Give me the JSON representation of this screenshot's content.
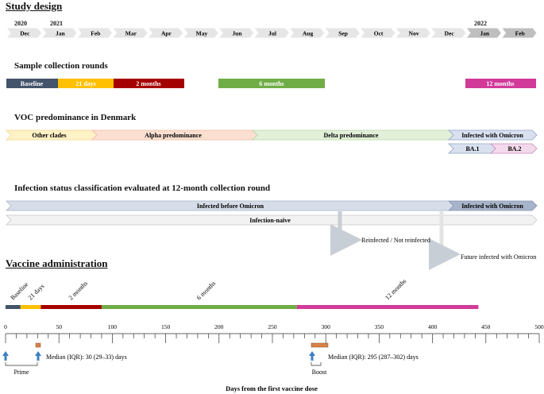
{
  "study_design": {
    "title": "Study design",
    "years": [
      "2020",
      "2021",
      "2022"
    ],
    "months": [
      "Dec",
      "Jan",
      "Feb",
      "Mar",
      "Apr",
      "May",
      "Jun",
      "Jul",
      "Aug",
      "Sep",
      "Oct",
      "Nov",
      "Dec",
      "Jan",
      "Feb"
    ]
  },
  "sample_rounds": {
    "title": "Sample collection rounds",
    "bars": [
      {
        "label": "Baseline",
        "color": "#44546a"
      },
      {
        "label": "21 days",
        "color": "#ffc000"
      },
      {
        "label": "2 months",
        "color": "#a50000"
      },
      {
        "label": "6 months",
        "color": "#70ad47"
      },
      {
        "label": "12 months",
        "color": "#d23a9a"
      }
    ]
  },
  "voc": {
    "title": "VOC predominance in Denmark",
    "periods": [
      "Other clades",
      "Alpha predominance",
      "Delta predominance",
      "Infected with Omicron"
    ],
    "sublineages": [
      "BA.1",
      "BA.2"
    ]
  },
  "infection_status": {
    "title": "Infection status classification evaluated at 12-month collection round",
    "infected_before": "Infected before Omicron",
    "infected_omicron": "Infected with Omicron",
    "naive": "Infection-naïve",
    "branch1": "Reinfected / Not reinfected",
    "branch2": "Future infected with Omicron"
  },
  "vaccine": {
    "title": "Vaccine administration",
    "segments": [
      {
        "label": "Baseline",
        "start": 0,
        "end": 14,
        "color": "#44546a"
      },
      {
        "label": "21 days",
        "start": 14,
        "end": 33,
        "color": "#ffc000"
      },
      {
        "label": "2 months",
        "start": 33,
        "end": 90,
        "color": "#a50000"
      },
      {
        "label": "6 months",
        "start": 90,
        "end": 273,
        "color": "#70ad47"
      },
      {
        "label": "12 months",
        "start": 273,
        "end": 443,
        "color": "#d23a9a"
      }
    ],
    "axis_ticks": [
      "0",
      "50",
      "100",
      "150",
      "200",
      "250",
      "300",
      "350",
      "400",
      "450",
      "500"
    ],
    "axis_label": "Days from the first vaccine dose",
    "prime_median": "Median (IQR): 30 (29–33) days",
    "boost_median": "Median (IQR): 295 (287–302) days",
    "prime_label": "Prime",
    "boost_label": "Boost",
    "dose_box_color": "#d9814b",
    "arrow_color": "#3d7fc1"
  }
}
